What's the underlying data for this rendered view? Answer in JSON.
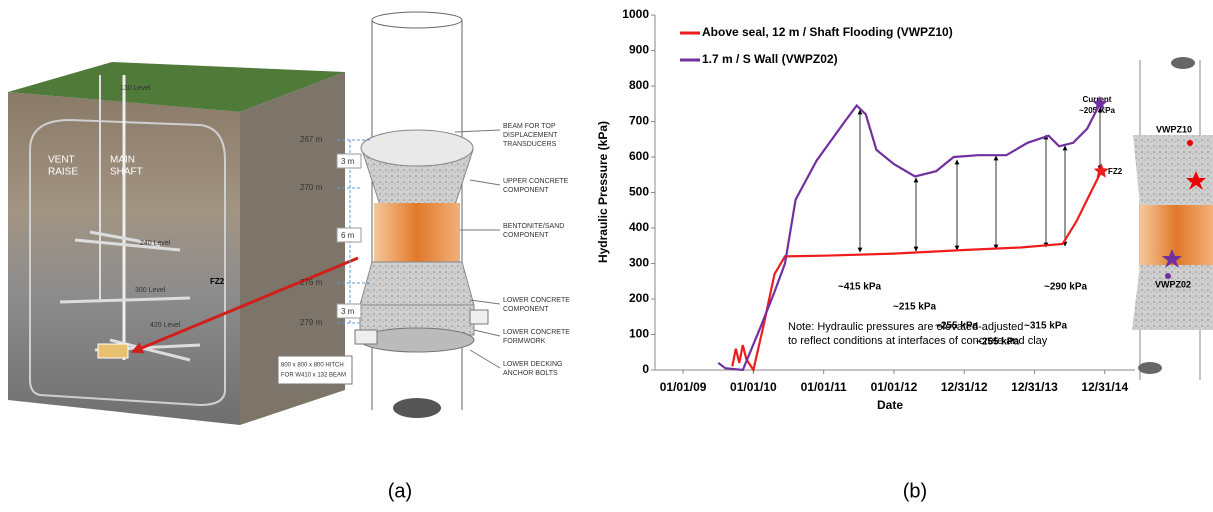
{
  "panel_a": {
    "label": "(a)",
    "block_diagram": {
      "vent_raise": [
        "VENT",
        "RAISE"
      ],
      "main_shaft": [
        "MAIN",
        "SHAFT"
      ],
      "levels": [
        "130 Level",
        "240 Level",
        "300 Level",
        "420 Level"
      ],
      "marker": "FZ2"
    },
    "schematic": {
      "elevations": [
        "267 m",
        "270 m",
        "276 m",
        "279 m"
      ],
      "spacings": [
        "3 m",
        "6 m",
        "3 m"
      ],
      "components": [
        [
          "BEAM FOR TOP",
          "DISPLACEMENT",
          "TRANSDUCERS"
        ],
        [
          "UPPER CONCRETE",
          "COMPONENT"
        ],
        [
          "BENTONITE/SAND",
          "COMPONENT"
        ],
        [
          "LOWER CONCRETE",
          "COMPONENT"
        ],
        [
          "LOWER CONCRETE",
          "FORMWORK"
        ],
        [
          "LOWER DECKING",
          "ANCHOR BOLTS"
        ]
      ],
      "hitch": [
        "800 x 800 x 800 HITCH",
        "FOR W410 x 132 BEAM"
      ]
    }
  },
  "panel_b": {
    "label": "(b)",
    "inset": {
      "labels": [
        "VWPZ10",
        "VWPZ02"
      ]
    }
  },
  "chart_data": {
    "type": "line",
    "x_label": "Date",
    "y_label": "Hydraulic Pressure (kPa)",
    "xlim": [
      2008.6,
      2015.43
    ],
    "xticks": [
      {
        "value": 2009,
        "label": "01/01/09"
      },
      {
        "value": 2010,
        "label": "01/01/10"
      },
      {
        "value": 2011,
        "label": "01/01/11"
      },
      {
        "value": 2012,
        "label": "01/01/12"
      },
      {
        "value": 2013,
        "label": "12/31/12"
      },
      {
        "value": 2014,
        "label": "12/31/13"
      },
      {
        "value": 2015,
        "label": "12/31/14"
      }
    ],
    "ylim": [
      0,
      1000
    ],
    "yticks": [
      0,
      100,
      200,
      300,
      400,
      500,
      600,
      700,
      800,
      900,
      1000
    ],
    "series": [
      {
        "name": "Above seal, 12 m / Shaft Flooding (VWPZ10)",
        "color": "#ee1c1c",
        "x": [
          2009.7,
          2009.75,
          2009.8,
          2009.85,
          2009.9,
          2010.0,
          2010.15,
          2010.3,
          2010.45,
          2011.0,
          2012.0,
          2013.0,
          2013.8,
          2014.4,
          2014.6,
          2014.8,
          2014.95
        ],
        "values": [
          10,
          60,
          20,
          70,
          30,
          0,
          130,
          270,
          320,
          322,
          328,
          338,
          345,
          355,
          420,
          500,
          560
        ]
      },
      {
        "name": "1.7 m / S Wall (VWPZ02)",
        "color": "#7030a0",
        "x": [
          2009.5,
          2009.6,
          2009.85,
          2010.1,
          2010.3,
          2010.45,
          2010.6,
          2010.9,
          2011.3,
          2011.47,
          2011.6,
          2011.75,
          2012.0,
          2012.3,
          2012.6,
          2012.85,
          2013.2,
          2013.6,
          2013.9,
          2014.2,
          2014.35,
          2014.55,
          2014.75,
          2014.93
        ],
        "values": [
          20,
          5,
          0,
          120,
          220,
          300,
          480,
          590,
          700,
          745,
          720,
          620,
          580,
          545,
          560,
          600,
          605,
          605,
          640,
          660,
          630,
          640,
          680,
          750
        ]
      }
    ],
    "annotations": [
      "~415 kPa",
      "~215 kPa",
      "~255 kPa",
      "~255 kPa",
      "~315 kPa",
      "~290 kPa"
    ],
    "current_label": [
      "Current",
      "~205 KPa"
    ],
    "marker_label": "FZ2",
    "note": [
      "Note: Hydraulic pressures are elevated-adjusted",
      "to reflect conditions at interfaces of concrete and clay"
    ]
  }
}
